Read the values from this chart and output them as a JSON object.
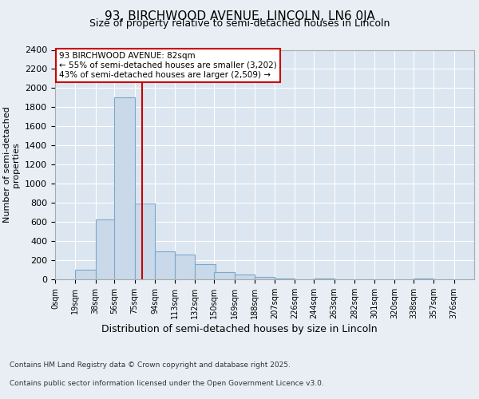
{
  "title1": "93, BIRCHWOOD AVENUE, LINCOLN, LN6 0JA",
  "title2": "Size of property relative to semi-detached houses in Lincoln",
  "xlabel": "Distribution of semi-detached houses by size in Lincoln",
  "ylabel": "Number of semi-detached\nproperties",
  "bin_labels": [
    "0sqm",
    "19sqm",
    "38sqm",
    "56sqm",
    "75sqm",
    "94sqm",
    "113sqm",
    "132sqm",
    "150sqm",
    "169sqm",
    "188sqm",
    "207sqm",
    "226sqm",
    "244sqm",
    "263sqm",
    "282sqm",
    "301sqm",
    "320sqm",
    "338sqm",
    "357sqm",
    "376sqm"
  ],
  "bar_values": [
    0,
    100,
    625,
    1900,
    790,
    290,
    260,
    160,
    75,
    50,
    25,
    10,
    0,
    5,
    0,
    0,
    0,
    0,
    5,
    0,
    0
  ],
  "bar_color": "#c9d9ea",
  "bar_edge_color": "#7aa8cc",
  "property_line_x": 82,
  "bin_width": 19,
  "bin_starts": [
    0,
    19,
    38,
    56,
    75,
    94,
    113,
    132,
    150,
    169,
    188,
    207,
    226,
    244,
    263,
    282,
    301,
    320,
    338,
    357,
    376
  ],
  "annotation_title": "93 BIRCHWOOD AVENUE: 82sqm",
  "annotation_line1": "← 55% of semi-detached houses are smaller (3,202)",
  "annotation_line2": "43% of semi-detached houses are larger (2,509) →",
  "annotation_box_color": "#ffffff",
  "annotation_box_edge": "#cc0000",
  "red_line_color": "#cc0000",
  "ylim": [
    0,
    2400
  ],
  "yticks": [
    0,
    200,
    400,
    600,
    800,
    1000,
    1200,
    1400,
    1600,
    1800,
    2000,
    2200,
    2400
  ],
  "bg_color": "#e8eef4",
  "plot_bg_color": "#dce6f0",
  "grid_color": "#ffffff",
  "footer_line1": "Contains HM Land Registry data © Crown copyright and database right 2025.",
  "footer_line2": "Contains public sector information licensed under the Open Government Licence v3.0."
}
